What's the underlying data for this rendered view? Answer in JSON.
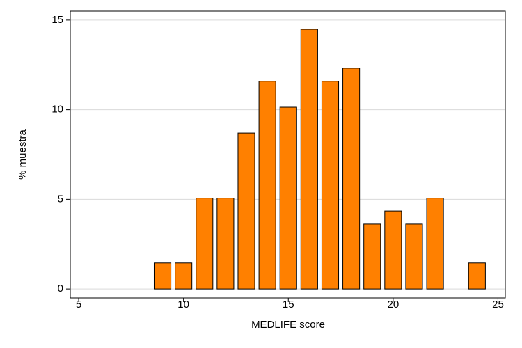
{
  "chart_data": {
    "type": "bar",
    "x": [
      9,
      10,
      11,
      12,
      13,
      14,
      15,
      16,
      17,
      18,
      19,
      20,
      21,
      22,
      24
    ],
    "values": [
      1.45,
      1.45,
      5.07,
      5.07,
      8.7,
      11.59,
      10.14,
      14.49,
      11.59,
      12.32,
      3.62,
      4.35,
      3.62,
      5.07,
      1.45
    ],
    "color": "#ff8000",
    "x_label": "MEDLIFE score",
    "y_label": "% muestra",
    "xlim": [
      4.6,
      25.35
    ],
    "xticks": [
      5,
      10,
      15,
      20,
      25
    ],
    "ylim": [
      -0.5,
      15.5
    ],
    "yticks": [
      0,
      5,
      10,
      15
    ],
    "grid": true
  }
}
